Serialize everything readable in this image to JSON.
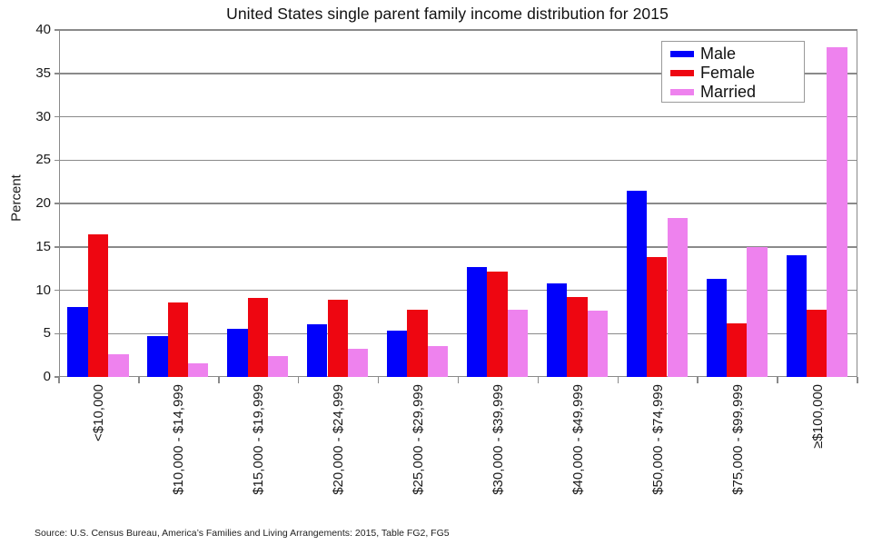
{
  "chart_data": {
    "type": "bar",
    "title": "United States single parent family income distribution for 2015",
    "xlabel": "",
    "ylabel": "Percent",
    "ylim": [
      0,
      40
    ],
    "yticks": [
      0,
      5,
      10,
      15,
      20,
      25,
      30,
      35,
      40
    ],
    "grid": "horizontal",
    "legend_position": "top-right",
    "categories": [
      "<$10,000",
      "$10,000 - $14,999",
      "$15,000 - $19,999",
      "$20,000 - $24,999",
      "$25,000 - $29,999",
      "$30,000 - $39,999",
      "$40,000 - $49,999",
      "$50,000 - $74,999",
      "$75,000 - $99,999",
      "≥$100,000"
    ],
    "series": [
      {
        "name": "Male",
        "color": "#0101FB",
        "values": [
          8.1,
          4.7,
          5.6,
          6.1,
          5.3,
          12.7,
          10.8,
          21.5,
          11.3,
          14.0
        ]
      },
      {
        "name": "Female",
        "color": "#EE0611",
        "values": [
          16.4,
          8.6,
          9.1,
          8.9,
          7.8,
          12.2,
          9.2,
          13.8,
          6.2,
          7.8
        ]
      },
      {
        "name": "Married",
        "color": "#EE82EE",
        "values": [
          2.6,
          1.6,
          2.4,
          3.2,
          3.6,
          7.7,
          7.6,
          18.3,
          15.0,
          38.0
        ]
      }
    ],
    "axis_color": "#8a8a8a",
    "source": "Source: U.S. Census Bureau, America’s Families and Living Arrangements: 2015, Table FG2, FG5"
  }
}
